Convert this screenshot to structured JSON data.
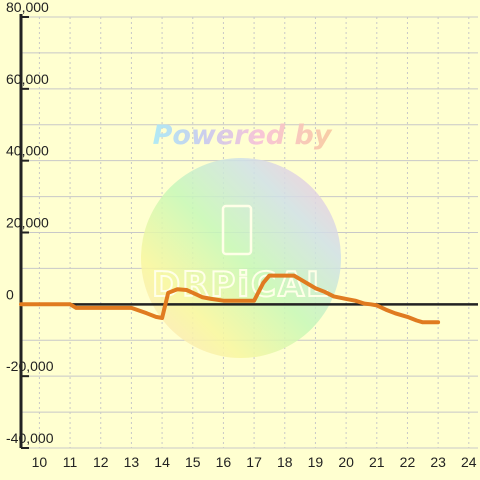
{
  "chart_data": {
    "type": "line",
    "title": "",
    "xlabel": "",
    "ylabel": "",
    "xlim": [
      9.4,
      24.3
    ],
    "ylim": [
      -40000,
      80000
    ],
    "x_ticks": [
      10,
      11,
      12,
      13,
      14,
      15,
      16,
      17,
      18,
      19,
      20,
      21,
      22,
      23,
      24
    ],
    "x_tick_labels": [
      "10",
      "11",
      "12",
      "13",
      "14",
      "15",
      "16",
      "17",
      "18",
      "19",
      "20",
      "21",
      "22",
      "23",
      "24"
    ],
    "y_ticks": [
      -40000,
      -20000,
      0,
      20000,
      40000,
      60000,
      80000
    ],
    "y_tick_labels": [
      "-40,000",
      "-20,000",
      "0",
      "20,000",
      "40,000",
      "60,000",
      "80,000"
    ],
    "grid": true,
    "legend": "none",
    "series": [
      {
        "color": "#e07b20",
        "x": [
          9.4,
          11.0,
          11.2,
          12.0,
          12.5,
          13.0,
          13.5,
          13.8,
          14.0,
          14.2,
          14.5,
          14.8,
          15.0,
          15.3,
          15.6,
          16.0,
          16.5,
          17.0,
          17.3,
          17.5,
          18.0,
          18.3,
          18.5,
          18.8,
          19.0,
          19.3,
          19.6,
          20.0,
          20.3,
          20.6,
          20.8,
          21.0,
          21.3,
          21.6,
          22.0,
          22.3,
          22.5,
          23.0
        ],
        "y": [
          0,
          0,
          -1000,
          -1000,
          -1000,
          -1000,
          -2500,
          -3500,
          -3800,
          3200,
          4200,
          4000,
          3200,
          2000,
          1500,
          1000,
          1000,
          1000,
          6000,
          8000,
          8000,
          8000,
          7000,
          5500,
          4500,
          3500,
          2200,
          1500,
          1000,
          200,
          0,
          -300,
          -1500,
          -2500,
          -3500,
          -4500,
          -5000,
          -5000
        ]
      }
    ],
    "colors": {
      "background": "#ffffd0",
      "grid": "#c8c8c8",
      "axis": "#222222",
      "line": "#e07b20"
    }
  },
  "watermark": {
    "text": "Powered by",
    "logo_text": "DRPiCAL"
  }
}
